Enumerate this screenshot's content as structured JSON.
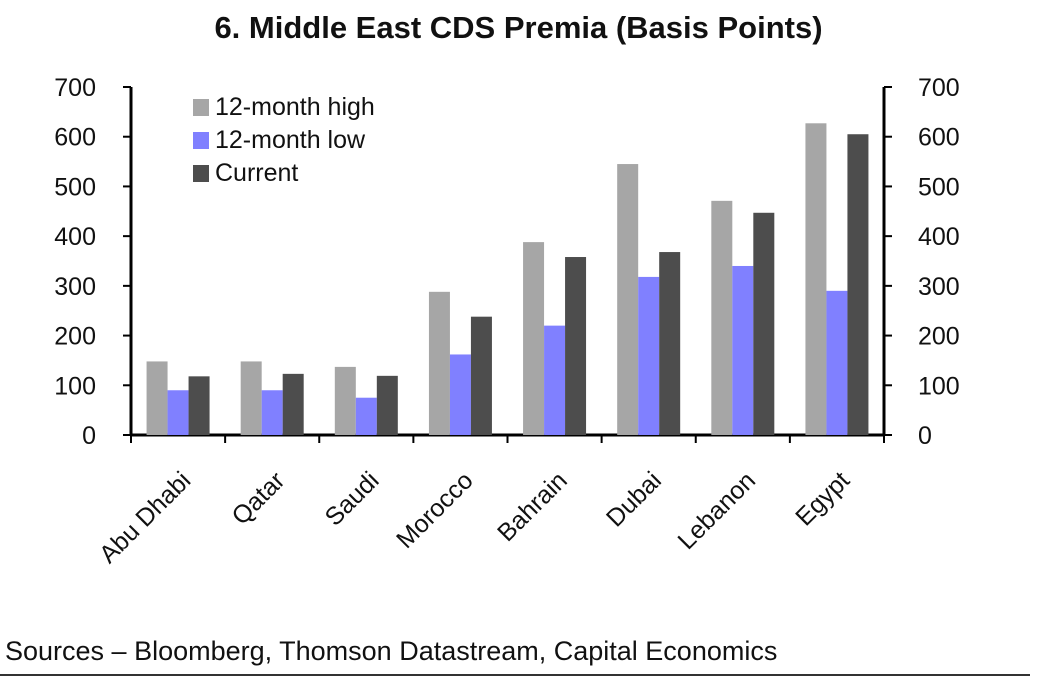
{
  "chart_data": {
    "type": "bar",
    "title": "6. Middle East CDS Premia (Basis Points)",
    "categories": [
      "Abu Dhabi",
      "Qatar",
      "Saudi",
      "Morocco",
      "Bahrain",
      "Dubai",
      "Lebanon",
      "Egypt"
    ],
    "series": [
      {
        "name": "12-month high",
        "color": "#a6a6a6",
        "values": [
          148,
          148,
          137,
          288,
          388,
          545,
          471,
          627
        ]
      },
      {
        "name": "12-month low",
        "color": "#8080ff",
        "values": [
          90,
          90,
          75,
          162,
          220,
          318,
          340,
          290
        ]
      },
      {
        "name": "Current",
        "color": "#4d4d4d",
        "values": [
          118,
          123,
          119,
          238,
          358,
          368,
          447,
          605
        ]
      }
    ],
    "ylim": [
      0,
      700
    ],
    "yticks": [
      0,
      100,
      200,
      300,
      400,
      500,
      600,
      700
    ],
    "y2ticks": [
      0,
      100,
      200,
      300,
      400,
      500,
      600,
      700
    ],
    "xlabel": "",
    "ylabel": "",
    "legend": "top-left",
    "grid": false
  },
  "footer": {
    "sources": "Sources –  Bloomberg, Thomson Datastream, Capital Economics"
  }
}
